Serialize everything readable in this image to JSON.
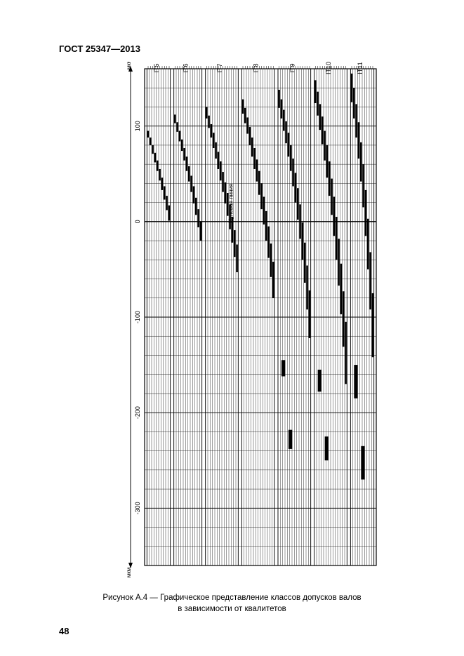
{
  "doc_header": "ГОСТ 25347—2013",
  "page_number": "48",
  "caption_line1": "Рисунок А.4 — Графическое представление классов допусков валов",
  "caption_line2": "в зависимости от квалитетов",
  "axis_unit_top": "мкм",
  "axis_unit_bottom": "мкм",
  "zero_note": "Нулевая линия",
  "chart": {
    "background": "#ffffff",
    "grid_color": "#000000",
    "bar_color": "#000000",
    "y_ticks": [
      100,
      0,
      -100,
      -200,
      -300
    ],
    "y_domain": [
      -360,
      160
    ],
    "sections": [
      {
        "label": "IT5",
        "lanes": 10,
        "bars": [
          [
            95,
            88
          ],
          [
            88,
            80
          ],
          [
            80,
            71
          ],
          [
            72,
            62
          ],
          [
            64,
            53
          ],
          [
            55,
            43
          ],
          [
            46,
            33
          ],
          [
            37,
            23
          ],
          [
            27,
            12
          ],
          [
            17,
            1
          ]
        ]
      },
      {
        "label": "IT6",
        "lanes": 12,
        "bars": [
          [
            112,
            103
          ],
          [
            104,
            94
          ],
          [
            95,
            84
          ],
          [
            86,
            74
          ],
          [
            77,
            64
          ],
          [
            68,
            53
          ],
          [
            58,
            42
          ],
          [
            48,
            31
          ],
          [
            37,
            19
          ],
          [
            25,
            7
          ],
          [
            13,
            -6
          ],
          [
            0,
            -20
          ]
        ]
      },
      {
        "label": "IT7",
        "lanes": 14,
        "bars": [
          [
            120,
            108
          ],
          [
            111,
            98
          ],
          [
            102,
            88
          ],
          [
            93,
            77
          ],
          [
            83,
            66
          ],
          [
            73,
            55
          ],
          [
            63,
            43
          ],
          [
            52,
            31
          ],
          [
            41,
            19
          ],
          [
            30,
            6
          ],
          [
            18,
            -8
          ],
          [
            5,
            -22
          ],
          [
            -9,
            -37
          ],
          [
            -24,
            -53
          ]
        ]
      },
      {
        "label": "IT8",
        "lanes": 14,
        "bars": [
          [
            128,
            113
          ],
          [
            119,
            103
          ],
          [
            109,
            92
          ],
          [
            99,
            80
          ],
          [
            88,
            68
          ],
          [
            77,
            55
          ],
          [
            65,
            42
          ],
          [
            53,
            28
          ],
          [
            40,
            13
          ],
          [
            26,
            -3
          ],
          [
            11,
            -20
          ],
          [
            -5,
            -38
          ],
          [
            -23,
            -58
          ],
          [
            -42,
            -80
          ]
        ]
      },
      {
        "label": "IT9",
        "lanes": 14,
        "bars": [
          [
            138,
            119
          ],
          [
            128,
            108
          ],
          [
            117,
            95
          ],
          [
            105,
            82
          ],
          [
            93,
            68
          ],
          [
            80,
            53
          ],
          [
            66,
            37
          ],
          [
            51,
            20
          ],
          [
            35,
            2
          ],
          [
            18,
            -18
          ],
          [
            -1,
            -40
          ],
          [
            -22,
            -64
          ],
          [
            -46,
            -92
          ],
          [
            -72,
            -122
          ],
          [
            -145,
            -162
          ],
          [
            -218,
            -238
          ]
        ]
      },
      {
        "label": "IT10",
        "lanes": 14,
        "bars": [
          [
            148,
            124
          ],
          [
            136,
            111
          ],
          [
            123,
            96
          ],
          [
            110,
            81
          ],
          [
            95,
            64
          ],
          [
            80,
            46
          ],
          [
            63,
            27
          ],
          [
            45,
            7
          ],
          [
            26,
            -15
          ],
          [
            5,
            -40
          ],
          [
            -18,
            -67
          ],
          [
            -44,
            -97
          ],
          [
            -73,
            -131
          ],
          [
            -105,
            -170
          ],
          [
            -155,
            -178
          ],
          [
            -225,
            -250
          ]
        ]
      },
      {
        "label": "IT11",
        "lanes": 10,
        "bars": [
          [
            155,
            125
          ],
          [
            140,
            108
          ],
          [
            123,
            88
          ],
          [
            104,
            66
          ],
          [
            83,
            42
          ],
          [
            60,
            15
          ],
          [
            33,
            -15
          ],
          [
            3,
            -50
          ],
          [
            -32,
            -92
          ],
          [
            -75,
            -142
          ],
          [
            -150,
            -185
          ],
          [
            -235,
            -270
          ]
        ]
      }
    ]
  }
}
